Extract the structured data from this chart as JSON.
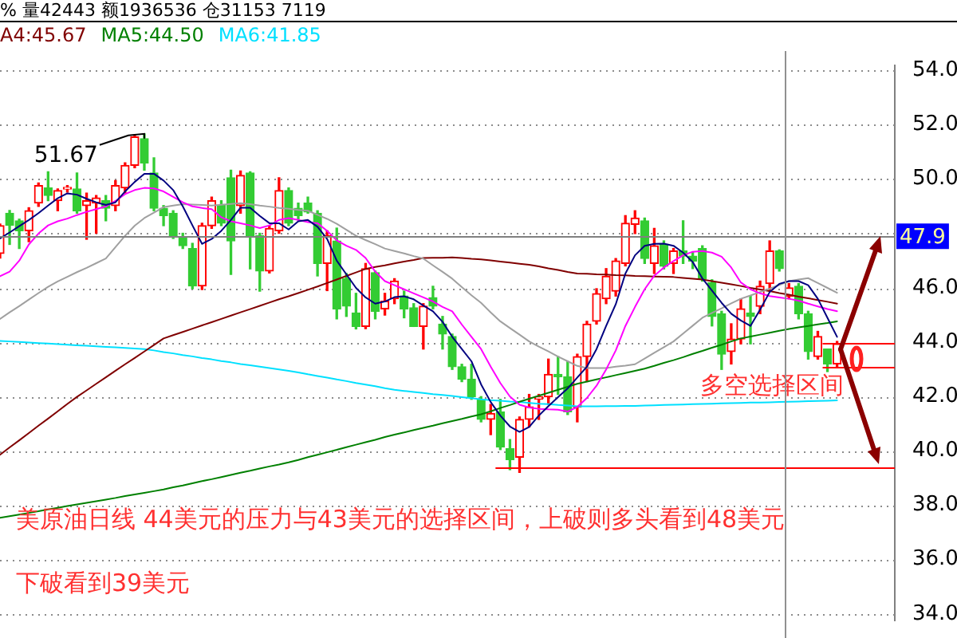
{
  "chart_data": {
    "type": "candlestick",
    "title": "% 量42443 额1936536 仓31153 7119",
    "categories": [
      null,
      null,
      null,
      null,
      null,
      null,
      null,
      null,
      null,
      null,
      null,
      null,
      null,
      null,
      null,
      null,
      null,
      null,
      null,
      null,
      null,
      null,
      null,
      null,
      null,
      null,
      null,
      null,
      null,
      null,
      null,
      null,
      null,
      null,
      null,
      null,
      null,
      null,
      null,
      null,
      null,
      null,
      null,
      null,
      null,
      null,
      null,
      null,
      null,
      null,
      null,
      null,
      null,
      null,
      null,
      null,
      null,
      null,
      null,
      null,
      null,
      null,
      null,
      null,
      null,
      null,
      null,
      null,
      null,
      null,
      null,
      null,
      null,
      null,
      null,
      null,
      null,
      null,
      null,
      null,
      null,
      null,
      null,
      null,
      null,
      null,
      null,
      null,
      null,
      null,
      null,
      null,
      null,
      null
    ],
    "ohlc": [
      [
        47.27,
        48.35,
        47.1,
        48.29
      ],
      [
        48.75,
        48.85,
        47.6,
        48.3
      ],
      [
        48.47,
        48.53,
        47.45,
        48.1
      ],
      [
        48.1,
        48.95,
        47.7,
        48.84
      ],
      [
        49.12,
        49.86,
        49.0,
        49.77
      ],
      [
        49.68,
        50.27,
        49.21,
        49.4
      ],
      [
        49.21,
        49.64,
        48.84,
        49.58
      ],
      [
        49.64,
        49.77,
        49.53,
        49.68
      ],
      [
        49.64,
        50.23,
        48.75,
        48.84
      ],
      [
        49.03,
        49.49,
        47.79,
        49.21
      ],
      [
        49.12,
        49.4,
        48.01,
        49.31
      ],
      [
        49.21,
        49.4,
        48.47,
        48.93
      ],
      [
        49.03,
        49.95,
        48.84,
        49.77
      ],
      [
        49.68,
        50.6,
        49.49,
        50.51
      ],
      [
        50.51,
        51.62,
        50.42,
        51.56
      ],
      [
        51.49,
        51.67,
        50.33,
        50.6
      ],
      [
        50.23,
        50.79,
        48.84,
        48.93
      ],
      [
        48.93,
        49.03,
        48.29,
        48.66
      ],
      [
        48.75,
        48.84,
        47.82,
        47.92
      ],
      [
        47.86,
        48.01,
        47.45,
        47.55
      ],
      [
        47.45,
        47.64,
        45.97,
        46.07
      ],
      [
        46.07,
        48.38,
        45.94,
        48.29
      ],
      [
        48.29,
        49.34,
        48.19,
        49.21
      ],
      [
        49.03,
        49.21,
        48.29,
        48.38
      ],
      [
        50.05,
        50.33,
        46.5,
        47.73
      ],
      [
        49.03,
        50.3,
        48.75,
        50.14
      ],
      [
        50.23,
        50.27,
        46.7,
        47.92
      ],
      [
        47.92,
        48.01,
        45.88,
        46.62
      ],
      [
        46.62,
        48.3,
        46.55,
        48.19
      ],
      [
        48.1,
        50.05,
        48.01,
        49.58
      ],
      [
        49.58,
        49.68,
        48.29,
        48.38
      ],
      [
        48.93,
        49.12,
        48.5,
        48.66
      ],
      [
        49.12,
        49.34,
        48.75,
        48.79
      ],
      [
        48.75,
        48.84,
        46.44,
        46.9
      ],
      [
        46.9,
        48.1,
        45.9,
        47.92
      ],
      [
        47.73,
        48.2,
        44.86,
        45.23
      ],
      [
        46.34,
        46.53,
        44.95,
        45.33
      ],
      [
        45.08,
        45.8,
        44.49,
        44.58
      ],
      [
        44.58,
        46.9,
        44.5,
        46.71
      ],
      [
        46.56,
        46.62,
        44.86,
        45.14
      ],
      [
        45.23,
        45.8,
        45.0,
        45.51
      ],
      [
        45.6,
        46.34,
        45.42,
        46.25
      ],
      [
        45.7,
        45.88,
        44.9,
        45.23
      ],
      [
        45.27,
        45.42,
        44.58,
        44.58
      ],
      [
        44.58,
        45.42,
        43.75,
        45.33
      ],
      [
        45.64,
        46.06,
        45.23,
        45.33
      ],
      [
        44.67,
        44.95,
        43.75,
        44.3
      ],
      [
        44.21,
        44.3,
        43.0,
        43.1
      ],
      [
        43.1,
        43.19,
        42.55,
        42.64
      ],
      [
        42.64,
        43.19,
        41.9,
        42.0
      ],
      [
        41.9,
        42.0,
        41.07,
        41.16
      ],
      [
        41.16,
        41.71,
        40.6,
        41.38
      ],
      [
        41.44,
        41.9,
        40.05,
        40.14
      ],
      [
        40.08,
        40.42,
        39.31,
        39.68
      ],
      [
        39.77,
        41.25,
        39.21,
        41.16
      ],
      [
        41.16,
        42.08,
        40.88,
        41.62
      ],
      [
        41.9,
        42.08,
        41.16,
        42.0
      ],
      [
        41.99,
        43.38,
        41.71,
        42.82
      ],
      [
        42.82,
        43.47,
        42.08,
        42.73
      ],
      [
        42.73,
        43.29,
        41.34,
        41.44
      ],
      [
        41.62,
        43.56,
        41.07,
        43.47
      ],
      [
        43.47,
        44.77,
        42.55,
        44.67
      ],
      [
        44.77,
        45.97,
        44.67,
        45.79
      ],
      [
        45.6,
        46.71,
        45.42,
        46.43
      ],
      [
        45.88,
        47.08,
        45.7,
        46.99
      ],
      [
        46.9,
        48.66,
        46.81,
        48.38
      ],
      [
        48.34,
        48.84,
        48.0,
        48.57
      ],
      [
        48.47,
        48.57,
        46.9,
        47.08
      ],
      [
        46.9,
        48.19,
        46.53,
        47.55
      ],
      [
        47.6,
        47.73,
        46.7,
        46.8
      ],
      [
        46.9,
        47.45,
        46.53,
        47.36
      ],
      [
        47.36,
        48.47,
        46.9,
        47.17
      ],
      [
        47.17,
        47.3,
        46.71,
        46.99
      ],
      [
        47.45,
        47.55,
        46.25,
        46.34
      ],
      [
        46.19,
        46.3,
        44.6,
        44.95
      ],
      [
        45.05,
        45.14,
        43.0,
        43.56
      ],
      [
        43.66,
        44.68,
        43.2,
        44.12
      ],
      [
        44.12,
        45.6,
        43.94,
        45.23
      ],
      [
        45.08,
        45.69,
        43.94,
        44.95
      ],
      [
        45.32,
        46.25,
        45.05,
        46.06
      ],
      [
        46.16,
        47.73,
        45.88,
        47.36
      ],
      [
        47.36,
        47.4,
        46.62,
        46.71
      ],
      [
        45.7,
        46.16,
        45.6,
        46.0
      ],
      [
        46.06,
        46.16,
        44.86,
        45.05
      ],
      [
        45.05,
        45.14,
        43.38,
        43.66
      ],
      [
        43.47,
        44.4,
        43.38,
        44.21
      ],
      [
        43.75,
        43.75,
        42.92,
        43.2
      ],
      [
        43.2,
        44.03,
        43.1,
        43.94
      ],
      null,
      null,
      null,
      null,
      null,
      null
    ],
    "series": [
      {
        "type": "line",
        "color": "#000080",
        "values": [
          47.82,
          48.04,
          48.27,
          48.5,
          48.75,
          49.03,
          49.3,
          49.48,
          49.43,
          49.28,
          49.15,
          49.05,
          49.15,
          49.55,
          49.9,
          50.2,
          50.2,
          49.95,
          49.6,
          49.0,
          48.3,
          47.62,
          47.8,
          48.1,
          48.5,
          48.95,
          48.95,
          48.65,
          48.38,
          48.38,
          48.15,
          48.45,
          48.5,
          48.25,
          47.8,
          47.0,
          46.5,
          46.0,
          45.65,
          45.42,
          45.5,
          45.66,
          45.69,
          45.58,
          45.35,
          45.14,
          44.75,
          44.2,
          43.75,
          43.3,
          42.45,
          41.8,
          41.3,
          40.9,
          40.7,
          40.88,
          41.3,
          41.65,
          41.98,
          42.3,
          42.7,
          43.1,
          43.75,
          44.6,
          45.4,
          46.53,
          47.2,
          47.55,
          47.62,
          47.63,
          47.55,
          47.3,
          46.95,
          46.35,
          45.9,
          45.45,
          45.05,
          44.8,
          44.6,
          45.2,
          45.85,
          46.15,
          46.25,
          46.25,
          46.1,
          45.6,
          44.9,
          44.2,
          null,
          null,
          null,
          null,
          null,
          null
        ]
      },
      {
        "type": "line",
        "color": "#ff00ff",
        "values": [
          46.43,
          46.6,
          47.0,
          47.6,
          48.0,
          48.3,
          48.45,
          48.55,
          48.68,
          48.8,
          48.9,
          49.0,
          49.2,
          49.45,
          49.6,
          49.68,
          49.66,
          49.55,
          49.35,
          49.15,
          49.0,
          48.94,
          48.9,
          48.6,
          48.45,
          48.38,
          48.3,
          48.2,
          48.3,
          48.5,
          48.57,
          48.5,
          48.42,
          48.38,
          48.1,
          47.75,
          47.55,
          47.4,
          47.1,
          46.6,
          46.25,
          46.1,
          45.95,
          45.8,
          45.65,
          45.5,
          45.3,
          45.14,
          44.65,
          44.2,
          43.75,
          43.1,
          42.5,
          42.0,
          41.7,
          41.6,
          41.55,
          41.53,
          41.52,
          41.45,
          41.62,
          41.95,
          42.4,
          43.0,
          43.7,
          44.6,
          45.3,
          45.95,
          46.45,
          46.75,
          46.99,
          47.2,
          47.33,
          47.36,
          47.3,
          47.15,
          46.75,
          46.2,
          45.95,
          45.8,
          45.7,
          45.65,
          45.6,
          45.53,
          45.42,
          45.32,
          45.22,
          45.14,
          null,
          null,
          null,
          null,
          null,
          null
        ]
      },
      {
        "type": "line",
        "color": "#a0a0a0",
        "values": [
          44.86,
          45.1,
          45.33,
          45.57,
          45.81,
          46.04,
          46.24,
          46.41,
          46.58,
          46.74,
          46.91,
          47.08,
          47.5,
          47.92,
          48.29,
          48.57,
          48.77,
          48.97,
          49.03,
          49.08,
          49.07,
          49.05,
          49.03,
          49.06,
          49.09,
          49.12,
          49.08,
          49.03,
          48.99,
          48.94,
          48.91,
          48.87,
          48.84,
          48.69,
          48.54,
          48.36,
          48.14,
          47.92,
          47.76,
          47.61,
          47.45,
          47.36,
          47.27,
          47.17,
          47.08,
          46.83,
          46.59,
          46.34,
          46.03,
          45.73,
          45.45,
          45.1,
          44.77,
          44.52,
          44.28,
          44.03,
          43.84,
          43.66,
          43.47,
          43.3,
          43.13,
          43.05,
          43.05,
          43.05,
          43.1,
          43.14,
          43.19,
          43.4,
          43.61,
          43.82,
          44.03,
          44.32,
          44.61,
          44.9,
          45.08,
          45.25,
          45.43,
          45.6,
          45.72,
          45.85,
          45.97,
          46.11,
          46.25,
          46.31,
          46.36,
          46.18,
          46.0,
          45.82,
          null,
          null,
          null,
          null,
          null,
          null
        ]
      },
      {
        "type": "line",
        "name": "A4:45.67",
        "color": "#800000",
        "values": [
          39.86,
          40.13,
          40.39,
          40.66,
          40.93,
          41.19,
          41.46,
          41.73,
          41.99,
          42.23,
          42.47,
          42.71,
          42.95,
          43.19,
          43.42,
          43.66,
          43.9,
          44.14,
          44.26,
          44.38,
          44.5,
          44.62,
          44.74,
          44.86,
          44.98,
          45.1,
          45.22,
          45.34,
          45.46,
          45.58,
          45.69,
          45.81,
          45.93,
          46.05,
          46.18,
          46.31,
          46.44,
          46.57,
          46.7,
          46.77,
          46.83,
          46.9,
          46.97,
          47.03,
          47.1,
          47.11,
          47.11,
          47.12,
          47.1,
          47.07,
          47.05,
          47.01,
          46.97,
          46.93,
          46.89,
          46.85,
          46.79,
          46.72,
          46.66,
          46.59,
          46.53,
          46.52,
          46.5,
          46.49,
          46.47,
          46.46,
          46.44,
          46.43,
          46.42,
          46.41,
          46.4,
          46.37,
          46.34,
          46.31,
          46.25,
          46.19,
          46.13,
          46.07,
          46.0,
          45.94,
          45.88,
          45.81,
          45.75,
          45.68,
          45.62,
          45.55,
          45.49,
          45.42,
          null,
          null,
          null,
          null,
          null,
          null
        ]
      },
      {
        "type": "line",
        "name": "MA5:44.50",
        "color": "#008000",
        "values": [
          37.54,
          37.6,
          37.66,
          37.72,
          37.78,
          37.85,
          37.91,
          37.97,
          38.03,
          38.09,
          38.15,
          38.21,
          38.27,
          38.34,
          38.4,
          38.46,
          38.52,
          38.58,
          38.66,
          38.73,
          38.81,
          38.89,
          38.96,
          39.04,
          39.12,
          39.2,
          39.27,
          39.35,
          39.43,
          39.5,
          39.58,
          39.67,
          39.77,
          39.86,
          39.95,
          40.04,
          40.14,
          40.23,
          40.32,
          40.41,
          40.51,
          40.6,
          40.68,
          40.77,
          40.85,
          40.93,
          41.02,
          41.1,
          41.18,
          41.27,
          41.35,
          41.46,
          41.58,
          41.69,
          41.81,
          41.92,
          42.03,
          42.14,
          42.25,
          42.36,
          42.47,
          42.55,
          42.63,
          42.71,
          42.79,
          42.87,
          42.95,
          43.03,
          43.13,
          43.24,
          43.34,
          43.45,
          43.57,
          43.68,
          43.8,
          43.91,
          44.03,
          44.14,
          44.21,
          44.28,
          44.35,
          44.42,
          44.49,
          44.55,
          44.6,
          44.66,
          44.71,
          44.77,
          null,
          null,
          null,
          null,
          null,
          null
        ]
      },
      {
        "type": "line",
        "name": "MA6:41.85",
        "color": "#00e0ff",
        "values": [
          44.05,
          44.03,
          44.01,
          43.99,
          43.97,
          43.95,
          43.93,
          43.91,
          43.89,
          43.87,
          43.85,
          43.83,
          43.81,
          43.79,
          43.77,
          43.75,
          43.7,
          43.64,
          43.59,
          43.53,
          43.48,
          43.42,
          43.37,
          43.31,
          43.26,
          43.2,
          43.15,
          43.1,
          43.05,
          43.0,
          42.95,
          42.89,
          42.82,
          42.76,
          42.7,
          42.63,
          42.57,
          42.5,
          42.44,
          42.38,
          42.31,
          42.25,
          42.21,
          42.17,
          42.13,
          42.09,
          42.06,
          42.02,
          41.98,
          41.94,
          41.9,
          41.87,
          41.85,
          41.82,
          41.8,
          41.77,
          41.74,
          41.72,
          41.69,
          41.67,
          41.64,
          41.64,
          41.64,
          41.65,
          41.65,
          41.66,
          41.66,
          41.67,
          41.68,
          41.69,
          41.7,
          41.71,
          41.72,
          41.73,
          41.74,
          41.75,
          41.76,
          41.77,
          41.78,
          41.78,
          41.79,
          41.8,
          41.81,
          41.82,
          41.83,
          41.84,
          41.85,
          41.86,
          null,
          null,
          null,
          null,
          null,
          null
        ]
      }
    ],
    "ylim": [
      33.75,
      54.2
    ],
    "yticks": [
      {
        "value": 34,
        "label": "34.0"
      },
      {
        "value": 36,
        "label": "36.0"
      },
      {
        "value": 38,
        "label": "38.0"
      },
      {
        "value": 40,
        "label": "40.0"
      },
      {
        "value": 42,
        "label": "42.0"
      },
      {
        "value": 44,
        "label": "44.0"
      },
      {
        "value": 46,
        "label": "46.0"
      },
      {
        "value": 48,
        "label": null
      },
      {
        "value": 50,
        "label": "50.0"
      },
      {
        "value": 52,
        "label": "52.0"
      },
      {
        "value": 54,
        "label": "54.0"
      }
    ],
    "ref_lines": [
      {
        "axis": "y",
        "value": 47.9,
        "label": "47.9",
        "color": "#808080"
      },
      {
        "axis": "y",
        "value": 44,
        "color": "#ff0000"
      },
      {
        "axis": "y",
        "value": 43.1,
        "color": "#ff0000"
      },
      {
        "axis": "y",
        "value": 39.4,
        "color": "#ff0000"
      }
    ],
    "annotations": [
      "51.67",
      "多空选择区间",
      "美原油日线 44美元的压力与43美元的选择区间，上破则多头看到48美元",
      "下破看到39美元"
    ],
    "grid": "y",
    "legend": "top left",
    "marker": "none",
    "tick_labels": "y"
  }
}
